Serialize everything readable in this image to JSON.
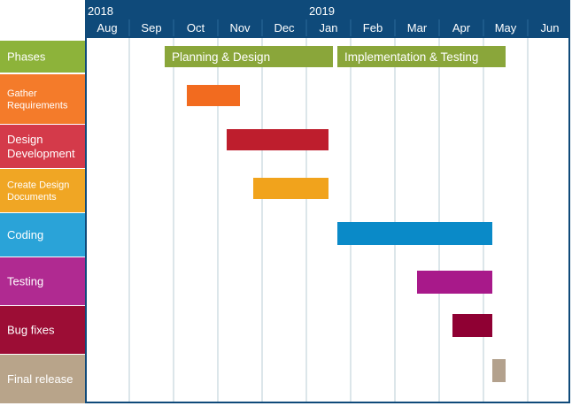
{
  "chart_data": {
    "type": "gantt",
    "years": [
      {
        "label": "2018",
        "at_month": 0
      },
      {
        "label": "2019",
        "at_month": 5
      }
    ],
    "months": [
      "Aug",
      "Sep",
      "Oct",
      "Nov",
      "Dec",
      "Jan",
      "Feb",
      "Mar",
      "Apr",
      "May",
      "Jun"
    ],
    "rows": [
      {
        "label_lines": [
          "Phases"
        ],
        "color": "#8db33a",
        "label_size": 13
      },
      {
        "label_lines": [
          "Gather",
          "Requirements"
        ],
        "color": "#f47b2a",
        "label_size": 11
      },
      {
        "label_lines": [
          "Design",
          "Development"
        ],
        "color": "#d43a4a",
        "label_size": 13
      },
      {
        "label_lines": [
          "Create Design",
          "Documents"
        ],
        "color": "#f0a624",
        "label_size": 11
      },
      {
        "label_lines": [
          "Coding"
        ],
        "color": "#2aa3d8",
        "label_size": 13
      },
      {
        "label_lines": [
          "Testing"
        ],
        "color": "#b02a91",
        "label_size": 13
      },
      {
        "label_lines": [
          "Bug fixes"
        ],
        "color": "#9c0d35",
        "label_size": 13
      },
      {
        "label_lines": [
          "Final release"
        ],
        "color": "#b8a48a",
        "label_size": 13
      }
    ],
    "phases": [
      {
        "label": "Planning & Design",
        "start": 1.8,
        "end": 5.6,
        "color": "#8aa63a"
      },
      {
        "label": "Implementation & Testing",
        "start": 5.7,
        "end": 9.5,
        "color": "#8aa63a"
      }
    ],
    "tasks": [
      {
        "row": 1,
        "start": 2.3,
        "end": 3.5,
        "color": "#f26b1f"
      },
      {
        "row": 2,
        "start": 3.2,
        "end": 5.5,
        "color": "#be1e2d"
      },
      {
        "row": 3,
        "start": 3.8,
        "end": 5.5,
        "color": "#f1a31c"
      },
      {
        "row": 4,
        "start": 5.7,
        "end": 9.2,
        "color": "#0a8ac8"
      },
      {
        "row": 5,
        "start": 7.5,
        "end": 9.2,
        "color": "#a8198a"
      },
      {
        "row": 6,
        "start": 8.3,
        "end": 9.2,
        "color": "#8f0033"
      },
      {
        "row": 7,
        "start": 9.2,
        "end": 9.5,
        "color": "#b3a18d"
      }
    ],
    "colors": {
      "header_bg": "#0f4a7a",
      "grid": "#b8ccd6",
      "frame": "#0f4a7a"
    }
  }
}
